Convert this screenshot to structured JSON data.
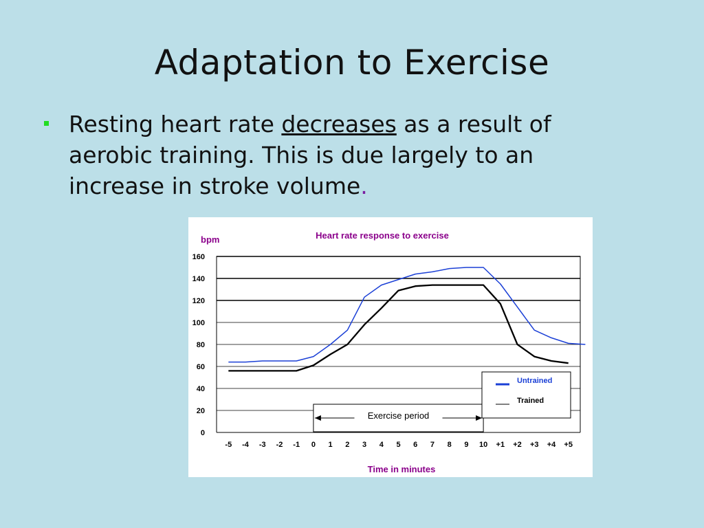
{
  "slide": {
    "title": "Adaptation to Exercise",
    "bullet": {
      "text_before": "Resting heart rate ",
      "emphasis": "decreases",
      "text_after": " as a result of aerobic training. This is due largely to an increase in stroke volume",
      "end_mark": "."
    }
  },
  "colors": {
    "background": "#bcdfe8",
    "bullet_marker": "#22dd22",
    "chart_title": "#8b008b",
    "untrained": "#1a3fd6",
    "trained": "#000000"
  },
  "chart_data": {
    "type": "line",
    "title": "Heart rate response to exercise",
    "ylabel": "bpm",
    "xlabel": "Time in minutes",
    "ylim": [
      0,
      160
    ],
    "yticks": [
      0,
      20,
      40,
      60,
      80,
      100,
      120,
      140,
      160
    ],
    "grid": "horizontal",
    "x_tick_labels": [
      "-5",
      "-4",
      "-3",
      "-2",
      "-1",
      "0",
      "1",
      "2",
      "3",
      "4",
      "5",
      "6",
      "7",
      "8",
      "9",
      "10",
      "+1",
      "+2",
      "+3",
      "+4",
      "+5"
    ],
    "x_tick_index": [
      -5,
      -4,
      -3,
      -2,
      -1,
      0,
      1,
      2,
      3,
      4,
      5,
      6,
      7,
      8,
      9,
      10,
      11,
      12,
      13,
      14,
      15
    ],
    "x_min": -5.7,
    "x_max": 15.7,
    "annotation": {
      "label": "Exercise period",
      "start": 0,
      "end": 10
    },
    "legend": {
      "position": "right",
      "entries": [
        "Untrained",
        "Trained"
      ]
    },
    "series": [
      {
        "name": "Untrained",
        "x": [
          -5,
          -4,
          -3,
          -2,
          -1,
          0,
          1,
          2,
          3,
          4,
          5,
          6,
          7,
          8,
          9,
          10,
          11,
          12,
          13,
          14,
          15,
          16
        ],
        "values": [
          64,
          64,
          65,
          65,
          65,
          69,
          80,
          93,
          123,
          134,
          139,
          144,
          146,
          149,
          150,
          150,
          135,
          114,
          93,
          86,
          81,
          80
        ]
      },
      {
        "name": "Trained",
        "x": [
          -5,
          -4,
          -3,
          -2,
          -1,
          0,
          1,
          2,
          3,
          4,
          5,
          6,
          7,
          8,
          9,
          10,
          11,
          12,
          13,
          14,
          15
        ],
        "values": [
          56,
          56,
          56,
          56,
          56,
          61,
          71,
          80,
          98,
          113,
          129,
          133,
          134,
          134,
          134,
          134,
          117,
          80,
          69,
          65,
          63
        ]
      }
    ]
  }
}
